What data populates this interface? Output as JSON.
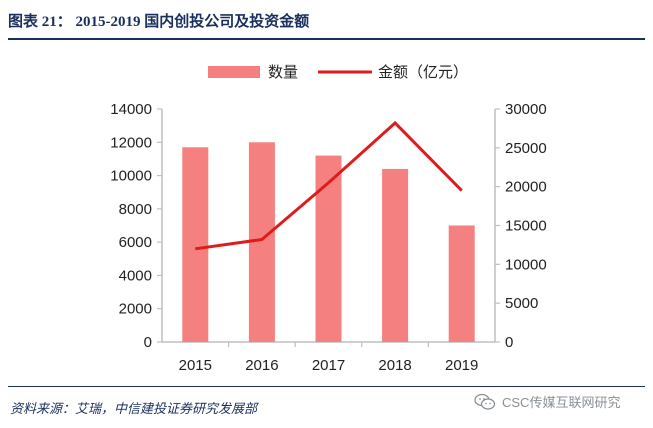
{
  "header": {
    "title": "图表 21：   2015-2019 国内创投公司及投资金额"
  },
  "footer": {
    "source": "资料来源：艾瑞，中信建投证券研究发展部",
    "watermark": "CSC传媒互联网研究"
  },
  "colors": {
    "bar": "#f58080",
    "line": "#e01b1b",
    "axis": "#bfbfbf",
    "text": "#1a2f5c"
  },
  "chart_data": {
    "type": "bar",
    "title": "",
    "categories": [
      "2015",
      "2016",
      "2017",
      "2018",
      "2019"
    ],
    "series": [
      {
        "name": "数量",
        "kind": "bar",
        "axis": "left",
        "values": [
          11700,
          12000,
          11200,
          10400,
          7000
        ]
      },
      {
        "name": "金额（亿元）",
        "kind": "line",
        "axis": "right",
        "values": [
          12000,
          13200,
          20500,
          28200,
          19500
        ]
      }
    ],
    "left_axis": {
      "min": 0,
      "max": 14000,
      "ticks": [
        "0",
        "2000",
        "4000",
        "6000",
        "8000",
        "10000",
        "12000",
        "14000"
      ]
    },
    "right_axis": {
      "min": 0,
      "max": 30000,
      "ticks": [
        "0",
        "5000",
        "10000",
        "15000",
        "20000",
        "25000",
        "30000"
      ]
    },
    "legend": [
      "数量",
      "金额（亿元）"
    ],
    "legend_position": "top",
    "xlabel": "",
    "ylabel": ""
  }
}
